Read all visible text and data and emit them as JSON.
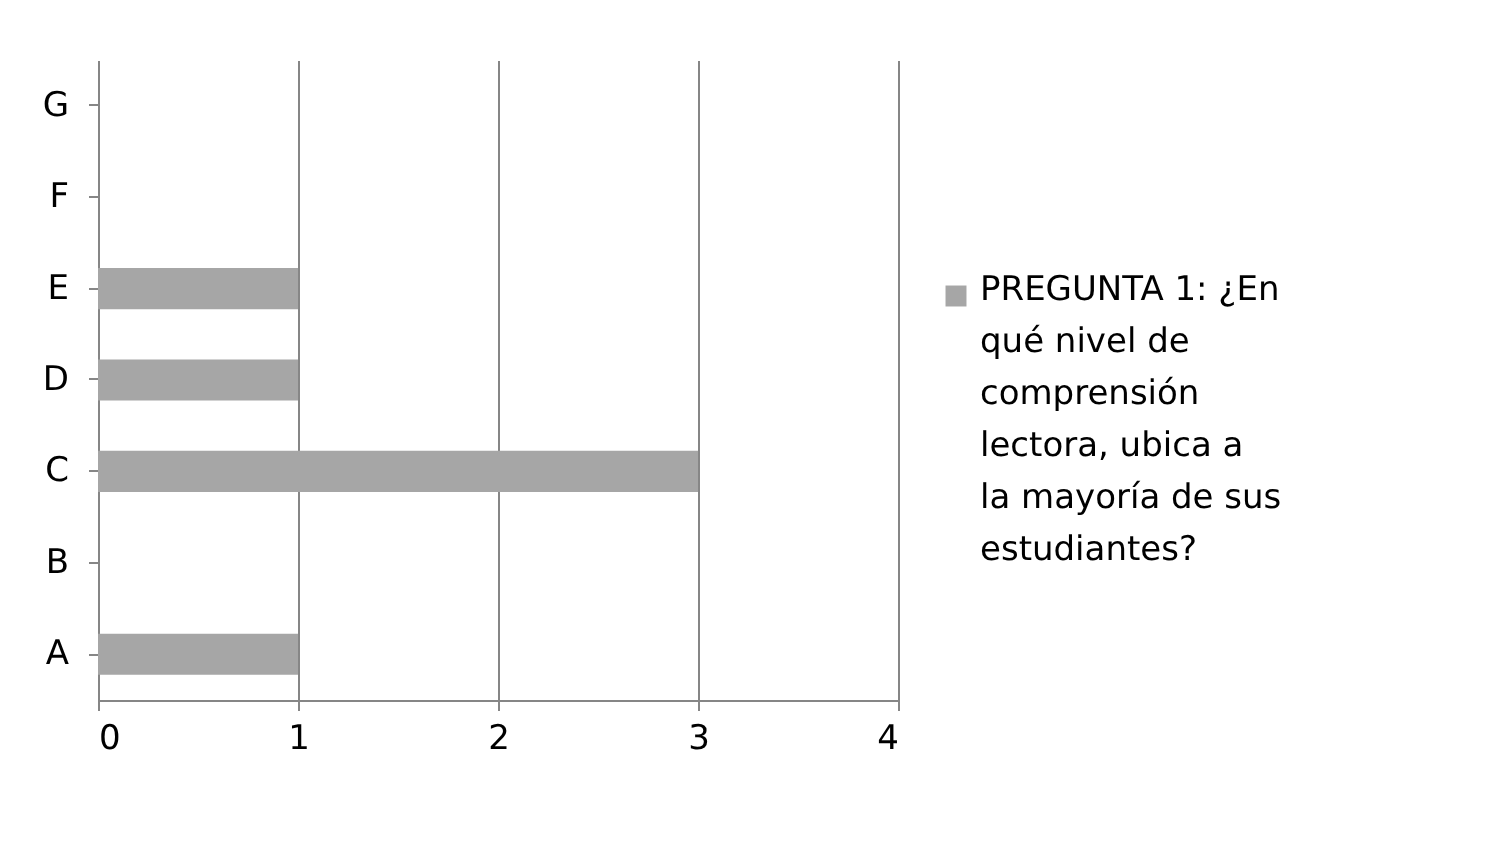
{
  "chart_data": {
    "type": "bar",
    "orientation": "horizontal",
    "categories": [
      "G",
      "F",
      "E",
      "D",
      "C",
      "B",
      "A"
    ],
    "series": [
      {
        "name": "PREGUNTA 1: ¿En qué nivel de comprensión lectora, ubica a la mayoría de sus estudiantes?",
        "color": "#a6a6a6",
        "values": [
          0,
          0,
          1,
          1,
          3,
          0,
          1
        ]
      }
    ],
    "xlim": [
      0,
      4
    ],
    "xticks": [
      0,
      1,
      2,
      3,
      4
    ],
    "grid": "x",
    "legend": "right"
  }
}
